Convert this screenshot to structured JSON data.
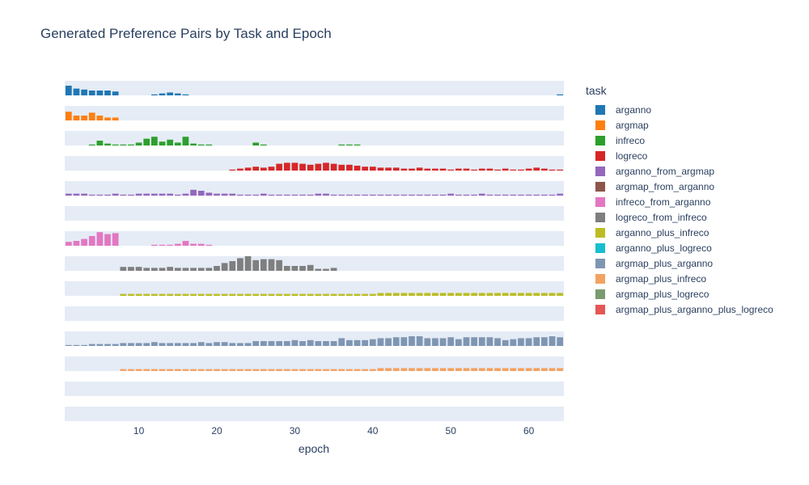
{
  "chart_data": {
    "type": "bar",
    "title": "Generated Preference Pairs by Task and Epoch",
    "xlabel": "epoch",
    "xlim": [
      0.5,
      64.5
    ],
    "x_ticks": [
      10,
      20,
      30,
      40,
      50,
      60
    ],
    "facet_by": "task",
    "legend": {
      "title": "task",
      "placement": "right"
    },
    "grid": true,
    "series": [
      {
        "name": "arganno",
        "color": "#1f77b4",
        "start": 1,
        "values": [
          10,
          7,
          6,
          5,
          5,
          5,
          4,
          0,
          0,
          0,
          0,
          1,
          2,
          3,
          2,
          1,
          0,
          0,
          0,
          0,
          0,
          0,
          0,
          0,
          0,
          0,
          0,
          0,
          0,
          0,
          0,
          0,
          0,
          0,
          0,
          0,
          0,
          0,
          0,
          0,
          0,
          0,
          0,
          0,
          0,
          0,
          0,
          0,
          0,
          0,
          0,
          0,
          0,
          0,
          0,
          0,
          0,
          0,
          0,
          0,
          0,
          0,
          0,
          1
        ]
      },
      {
        "name": "argmap",
        "color": "#ff7f0e",
        "start": 1,
        "values": [
          9,
          5,
          5,
          8,
          5,
          3,
          3,
          0,
          0,
          0,
          0,
          0,
          0,
          0,
          0,
          0,
          0,
          0,
          0,
          0,
          0,
          0,
          0,
          0,
          0,
          0,
          0,
          0,
          0,
          0,
          0,
          0,
          0,
          0,
          0,
          0,
          0,
          0,
          0,
          0,
          0,
          0,
          0,
          0,
          0,
          0,
          0,
          0,
          0,
          0,
          0,
          0,
          0,
          0,
          0,
          0,
          0,
          0,
          0,
          0,
          0,
          0,
          0,
          0
        ]
      },
      {
        "name": "infreco",
        "color": "#2ca02c",
        "start": 1,
        "values": [
          0,
          0,
          0,
          1,
          5,
          2,
          1,
          1,
          1,
          3,
          7,
          9,
          4,
          6,
          3,
          9,
          2,
          1,
          1,
          0,
          0,
          0,
          0,
          0,
          3,
          1,
          0,
          0,
          0,
          0,
          0,
          0,
          0,
          0,
          0,
          1,
          1,
          1,
          0,
          0,
          0,
          0,
          0,
          0,
          0,
          0,
          0,
          0,
          0,
          0,
          0,
          0,
          0,
          0,
          0,
          0,
          0,
          0,
          0,
          0,
          0,
          0,
          0,
          0
        ]
      },
      {
        "name": "logreco",
        "color": "#d62728",
        "start": 1,
        "values": [
          0,
          0,
          0,
          0,
          0,
          0,
          0,
          0,
          0,
          0,
          0,
          0,
          0,
          0,
          0,
          0,
          0,
          0,
          0,
          0,
          0,
          1,
          2,
          3,
          4,
          3,
          4,
          7,
          8,
          8,
          7,
          6,
          7,
          8,
          7,
          6,
          6,
          5,
          4,
          4,
          3,
          3,
          3,
          2,
          2,
          3,
          2,
          2,
          2,
          1,
          2,
          2,
          1,
          2,
          2,
          1,
          2,
          1,
          1,
          2,
          3,
          2,
          1,
          1
        ]
      },
      {
        "name": "arganno_from_argmap",
        "color": "#9467bd",
        "start": 1,
        "values": [
          2,
          2,
          2,
          1,
          1,
          1,
          2,
          1,
          1,
          2,
          2,
          2,
          2,
          2,
          1,
          2,
          6,
          5,
          3,
          2,
          2,
          2,
          1,
          1,
          1,
          2,
          1,
          1,
          1,
          1,
          1,
          1,
          2,
          2,
          1,
          1,
          1,
          1,
          1,
          1,
          1,
          1,
          1,
          1,
          1,
          1,
          1,
          1,
          1,
          2,
          1,
          1,
          1,
          2,
          1,
          1,
          1,
          1,
          1,
          1,
          1,
          1,
          1,
          2
        ]
      },
      {
        "name": "argmap_from_arganno",
        "color": "#8c564b",
        "start": 1,
        "values": [
          0,
          0,
          0,
          0,
          0,
          0,
          0,
          0,
          0,
          0,
          0,
          0,
          0,
          0,
          0,
          0,
          0,
          0,
          0,
          0,
          0,
          0,
          0,
          0,
          0,
          0,
          0,
          0,
          0,
          0,
          0,
          0,
          0,
          0,
          0,
          0,
          0,
          0,
          0,
          0,
          0,
          0,
          0,
          0,
          0,
          0,
          0,
          0,
          0,
          0,
          0,
          0,
          0,
          0,
          0,
          0,
          0,
          0,
          0,
          0,
          0,
          0,
          0,
          0
        ]
      },
      {
        "name": "infreco_from_arganno",
        "color": "#e377c2",
        "start": 1,
        "values": [
          4,
          5,
          7,
          10,
          14,
          12,
          13,
          0,
          0,
          0,
          0,
          1,
          1,
          1,
          2,
          5,
          2,
          2,
          1,
          0,
          0,
          0,
          0,
          0,
          0,
          0,
          0,
          0,
          0,
          0,
          0,
          0,
          0,
          0,
          0,
          0,
          0,
          0,
          0,
          0,
          0,
          0,
          0,
          0,
          0,
          0,
          0,
          0,
          0,
          0,
          0,
          0,
          0,
          0,
          0,
          0,
          0,
          0,
          0,
          0,
          0,
          0,
          0,
          0
        ]
      },
      {
        "name": "logreco_from_infreco",
        "color": "#7f7f7f",
        "start": 8,
        "values": [
          4,
          4,
          4,
          3,
          3,
          3,
          4,
          3,
          3,
          3,
          3,
          3,
          5,
          8,
          10,
          13,
          15,
          11,
          12,
          12,
          11,
          5,
          5,
          5,
          6,
          2,
          2,
          3,
          0,
          0,
          0,
          0,
          0,
          0,
          0,
          0,
          0,
          0,
          0,
          0,
          0,
          0,
          0,
          0,
          0,
          0,
          0,
          0,
          0,
          0,
          0,
          0,
          0,
          0,
          0,
          0,
          0
        ]
      },
      {
        "name": "arganno_plus_infreco",
        "color": "#bcbd22",
        "start": 8,
        "values": [
          2,
          2,
          2,
          2,
          2,
          2,
          2,
          2,
          2,
          2,
          2,
          2,
          2,
          2,
          2,
          2,
          2,
          2,
          2,
          2,
          2,
          2,
          2,
          2,
          2,
          2,
          2,
          2,
          2,
          2,
          2,
          2,
          2,
          3,
          3,
          3,
          3,
          3,
          3,
          3,
          3,
          3,
          3,
          3,
          3,
          3,
          3,
          3,
          3,
          3,
          3,
          3,
          3,
          3,
          3,
          3,
          3
        ]
      },
      {
        "name": "arganno_plus_logreco",
        "color": "#17becf",
        "start": 1,
        "values": []
      },
      {
        "name": "argmap_plus_arganno",
        "color": "#7f96b2",
        "start": 1,
        "values": [
          1,
          1,
          1,
          2,
          2,
          2,
          2,
          3,
          3,
          3,
          3,
          4,
          3,
          3,
          3,
          3,
          3,
          4,
          3,
          4,
          4,
          3,
          3,
          3,
          5,
          5,
          5,
          5,
          5,
          6,
          5,
          6,
          5,
          5,
          5,
          8,
          6,
          6,
          6,
          7,
          8,
          8,
          9,
          9,
          10,
          10,
          8,
          8,
          8,
          9,
          7,
          9,
          9,
          9,
          9,
          8,
          6,
          7,
          8,
          8,
          9,
          9,
          10,
          9
        ]
      },
      {
        "name": "argmap_plus_infreco",
        "color": "#f4a261",
        "start": 8,
        "values": [
          2,
          2,
          2,
          2,
          2,
          2,
          2,
          2,
          2,
          2,
          2,
          2,
          2,
          2,
          2,
          2,
          2,
          2,
          2,
          2,
          2,
          2,
          2,
          2,
          2,
          2,
          2,
          2,
          2,
          2,
          2,
          2,
          2,
          3,
          3,
          3,
          3,
          3,
          3,
          3,
          3,
          3,
          3,
          3,
          3,
          3,
          3,
          3,
          3,
          3,
          3,
          3,
          3,
          3,
          3,
          3,
          3
        ]
      },
      {
        "name": "argmap_plus_logreco",
        "color": "#7a9b6e",
        "start": 1,
        "values": []
      },
      {
        "name": "argmap_plus_arganno_plus_logreco",
        "color": "#e45756",
        "start": 1,
        "values": []
      }
    ]
  }
}
